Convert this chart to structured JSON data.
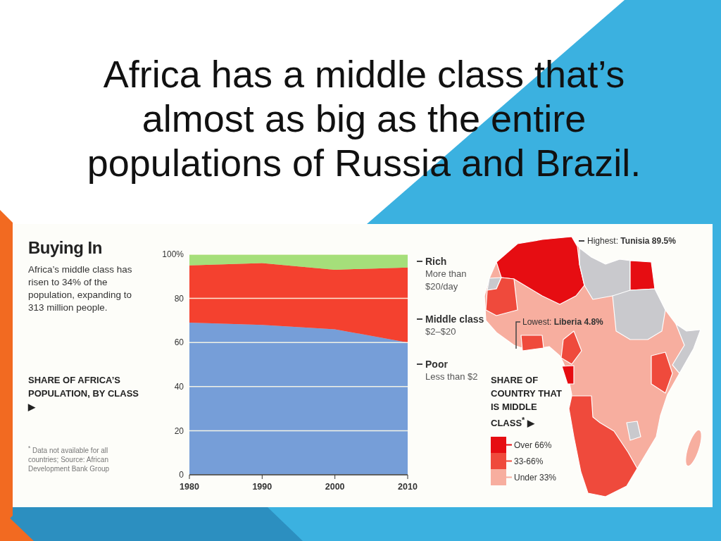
{
  "chart_data": [
    {
      "type": "area",
      "stacked": true,
      "title": "Buying In",
      "subtitle": "Africa’s middle class has risen to 34% of the population, expanding to 313 million people.",
      "ylabel": "SHARE OF AFRICA’S POPULATION, BY CLASS ▶",
      "x": [
        1980,
        1990,
        2000,
        2010
      ],
      "xlim": [
        1980,
        2010
      ],
      "xticks": [
        1980,
        1990,
        2000,
        2010
      ],
      "ylim": [
        0,
        100
      ],
      "yticks": [
        0,
        20,
        40,
        60,
        80,
        {
          "value": 100,
          "label": "100%"
        }
      ],
      "grid": "y",
      "legend": "right",
      "series": [
        {
          "name": "Poor",
          "color": "#769ed8",
          "values": [
            69,
            68,
            66,
            60
          ]
        },
        {
          "name": "Middle class",
          "color": "#f4412f",
          "values": [
            26,
            28,
            27,
            34
          ]
        },
        {
          "name": "Rich",
          "color": "#a5df7a",
          "values": [
            5,
            4,
            7,
            6
          ]
        }
      ],
      "annotations": [
        "Less than $2",
        "$2–$20",
        "More than $20/day",
        "$^{*}$ Data not available for all countries; Source: African Development Bank Group",
        "Africa has a middle class that’s almost as big as the entire populations of Russia and Brazil."
      ]
    },
    {
      "type": "other",
      "title": "SHARE OF COUNTRY THAT IS MIDDLE CLASS$^{*}$ ▶",
      "legend": "bottom left",
      "series": [
        {
          "name": "Over 66%",
          "color": "#e60d12"
        },
        {
          "name": "33-66%",
          "color": "#ef4a3c"
        },
        {
          "name": "Under 33%",
          "color": "#f7ae9f"
        }
      ],
      "annotations": [
        "Highest: Tunisia 89.5%",
        "Lowest: Liberia 4.8%"
      ]
    }
  ]
}
